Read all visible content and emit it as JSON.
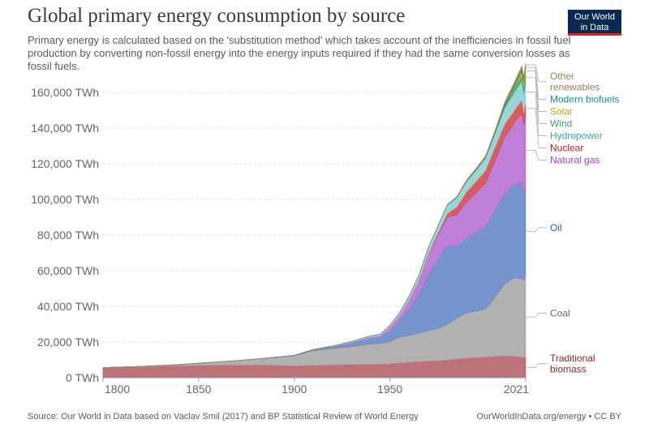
{
  "header": {
    "title": "Global primary energy consumption by source",
    "subtitle": "Primary energy is calculated based on the 'substitution method' which takes account of the inefficiencies in fossil fuel production by converting non-fossil energy into the energy inputs required if they had the same conversion losses as fossil fuels.",
    "logo_line1": "Our World",
    "logo_line2": "in Data"
  },
  "footer": {
    "source": "Source: Our World in Data based on Vaclav Smil (2017) and BP Statistical Review of World Energy",
    "credit": "OurWorldInData.org/energy • CC BY"
  },
  "colors": {
    "logo_bg": "#0a2a51",
    "logo_accent": "#d42b21"
  },
  "chart_data": {
    "type": "area",
    "stacked": true,
    "x": [
      1800,
      1820,
      1840,
      1860,
      1870,
      1880,
      1890,
      1900,
      1910,
      1920,
      1930,
      1940,
      1945,
      1950,
      1955,
      1960,
      1965,
      1970,
      1975,
      1980,
      1985,
      1990,
      1995,
      2000,
      2005,
      2010,
      2015,
      2019,
      2020,
      2021
    ],
    "xticks": [
      "1800",
      "1850",
      "1900",
      "1950",
      "2021"
    ],
    "xtick_values": [
      1800,
      1850,
      1900,
      1950,
      2021
    ],
    "xlim": [
      1800,
      2021
    ],
    "ylim": [
      0,
      170000
    ],
    "yticks": [
      "0 TWh",
      "20,000 TWh",
      "40,000 TWh",
      "60,000 TWh",
      "80,000 TWh",
      "100,000 TWh",
      "120,000 TWh",
      "140,000 TWh",
      "160,000 TWh"
    ],
    "ytick_values": [
      0,
      20000,
      40000,
      60000,
      80000,
      100000,
      120000,
      140000,
      160000
    ],
    "grid": true,
    "legend": "right, labels at series ends",
    "series": [
      {
        "name": "Traditional biomass",
        "color": "#b0595e",
        "values": [
          5600,
          6000,
          6700,
          7000,
          7100,
          7200,
          7000,
          6600,
          6900,
          7200,
          7400,
          7500,
          7600,
          7800,
          8300,
          8700,
          9000,
          9300,
          9600,
          10000,
          10500,
          11000,
          11300,
          11600,
          12000,
          12300,
          12000,
          11500,
          11500,
          11500
        ]
      },
      {
        "name": "Coal",
        "color": "#a3a3a3",
        "values": [
          97,
          300,
          700,
          1800,
          2500,
          3200,
          4400,
          5700,
          8300,
          9200,
          10000,
          11500,
          11500,
          12500,
          14500,
          15000,
          16000,
          17000,
          18000,
          20000,
          23000,
          25500,
          26000,
          27000,
          33000,
          40500,
          44000,
          44000,
          43000,
          45000
        ]
      },
      {
        "name": "Oil",
        "color": "#5c84c4",
        "values": [
          0,
          0,
          0,
          0,
          0,
          10,
          50,
          180,
          390,
          800,
          1800,
          2800,
          3300,
          5800,
          8500,
          14500,
          21000,
          31000,
          38500,
          44000,
          40000,
          41500,
          44000,
          46000,
          49000,
          50000,
          52000,
          54000,
          48500,
          51000
        ]
      },
      {
        "name": "Natural gas",
        "color": "#b468d0",
        "values": [
          0,
          0,
          0,
          0,
          0,
          5,
          30,
          65,
          180,
          250,
          550,
          900,
          1100,
          2100,
          3400,
          5300,
          8000,
          11800,
          13700,
          16000,
          18000,
          20600,
          22400,
          24600,
          28000,
          32000,
          35000,
          39000,
          38500,
          40000
        ]
      },
      {
        "name": "Nuclear",
        "color": "#d34040",
        "values": [
          0,
          0,
          0,
          0,
          0,
          0,
          0,
          0,
          0,
          0,
          0,
          0,
          0,
          0,
          0,
          0,
          60,
          200,
          1000,
          2000,
          4200,
          5600,
          6200,
          7000,
          7300,
          7300,
          6800,
          7200,
          6800,
          7100
        ]
      },
      {
        "name": "Hydropower",
        "color": "#86d0d0",
        "values": [
          0,
          0,
          0,
          0,
          0,
          0,
          5,
          20,
          110,
          300,
          550,
          800,
          900,
          1100,
          1650,
          2100,
          2800,
          3500,
          4000,
          4800,
          5300,
          5800,
          6500,
          7000,
          7800,
          9100,
          10200,
          10900,
          11300,
          11200
        ]
      },
      {
        "name": "Wind",
        "color": "#3e9f61",
        "values": [
          0,
          0,
          0,
          0,
          0,
          0,
          0,
          0,
          0,
          0,
          0,
          0,
          0,
          0,
          0,
          0,
          0,
          0,
          0,
          0,
          0,
          10,
          20,
          80,
          260,
          900,
          2200,
          3500,
          3900,
          4900
        ]
      },
      {
        "name": "Solar",
        "color": "#d5b400",
        "values": [
          0,
          0,
          0,
          0,
          0,
          0,
          0,
          0,
          0,
          0,
          0,
          0,
          0,
          0,
          0,
          0,
          0,
          0,
          0,
          0,
          0,
          0,
          0,
          5,
          20,
          90,
          650,
          1800,
          2200,
          2700
        ]
      },
      {
        "name": "Modern biofuels",
        "color": "#178c97",
        "values": [
          0,
          0,
          0,
          0,
          0,
          0,
          0,
          0,
          0,
          0,
          0,
          0,
          0,
          0,
          0,
          0,
          0,
          0,
          0,
          50,
          150,
          120,
          200,
          250,
          400,
          900,
          1000,
          1100,
          1000,
          1100
        ]
      },
      {
        "name": "Other renewables",
        "color": "#9b7e52",
        "values": [
          0,
          0,
          0,
          0,
          0,
          0,
          0,
          0,
          0,
          0,
          0,
          0,
          0,
          0,
          0,
          50,
          80,
          110,
          150,
          250,
          400,
          600,
          700,
          800,
          950,
          1400,
          1700,
          1850,
          1900,
          1900
        ]
      }
    ],
    "label_colors": {
      "Other renewables": "#9b7e52",
      "Modern biofuels": "#178c97",
      "Solar": "#c2a100",
      "Wind": "#3e9f61",
      "Hydropower": "#3ba6a8",
      "Nuclear": "#b12020",
      "Natural gas": "#a23cc2",
      "Oil": "#2f5ea8",
      "Coal": "#6b6b6b",
      "Traditional biomass": "#8c2525"
    }
  }
}
